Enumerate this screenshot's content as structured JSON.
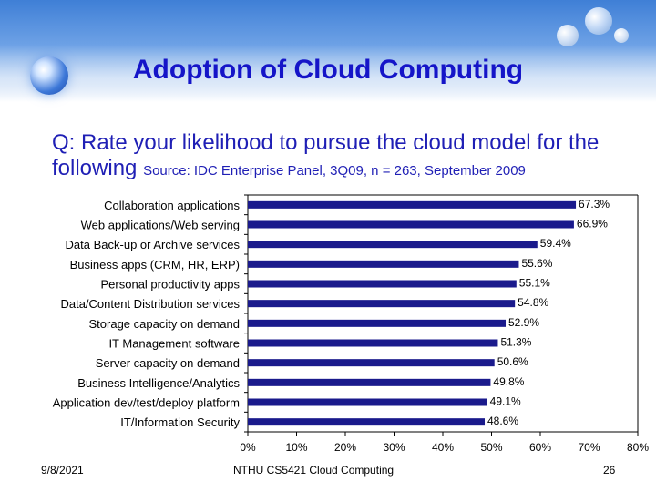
{
  "slide": {
    "title": "Adoption of Cloud Computing",
    "question": "Q: Rate your likelihood to pursue the cloud model for the following",
    "source": "Source: IDC Enterprise Panel, 3Q09, n = 263, September 2009",
    "footer_date": "9/8/2021",
    "footer_center": "NTHU CS5421 Cloud Computing",
    "page_number": "26"
  },
  "colors": {
    "bar": "#1a1a8c",
    "title": "#1515c8",
    "banner": "#3f7fd6"
  },
  "chart_data": {
    "type": "bar",
    "orientation": "horizontal",
    "title": "",
    "xlabel": "",
    "ylabel": "",
    "xlim": [
      0,
      80
    ],
    "categories": [
      "Collaboration applications",
      "Web applications/Web serving",
      "Data Back-up or Archive services",
      "Business apps (CRM, HR, ERP)",
      "Personal productivity apps",
      "Data/Content Distribution services",
      "Storage capacity on demand",
      "IT Management software",
      "Server capacity on demand",
      "Business Intelligence/Analytics",
      "Application dev/test/deploy platform",
      "IT/Information Security"
    ],
    "values": [
      67.3,
      66.9,
      59.4,
      55.6,
      55.1,
      54.8,
      52.9,
      51.3,
      50.6,
      49.8,
      49.1,
      48.6
    ],
    "value_labels": [
      "67.3%",
      "66.9%",
      "59.4%",
      "55.6%",
      "55.1%",
      "54.8%",
      "52.9%",
      "51.3%",
      "50.6%",
      "49.8%",
      "49.1%",
      "48.6%"
    ],
    "ticks": [
      0,
      10,
      20,
      30,
      40,
      50,
      60,
      70,
      80
    ],
    "tick_labels": [
      "0%",
      "10%",
      "20%",
      "30%",
      "40%",
      "50%",
      "60%",
      "70%",
      "80%"
    ]
  }
}
